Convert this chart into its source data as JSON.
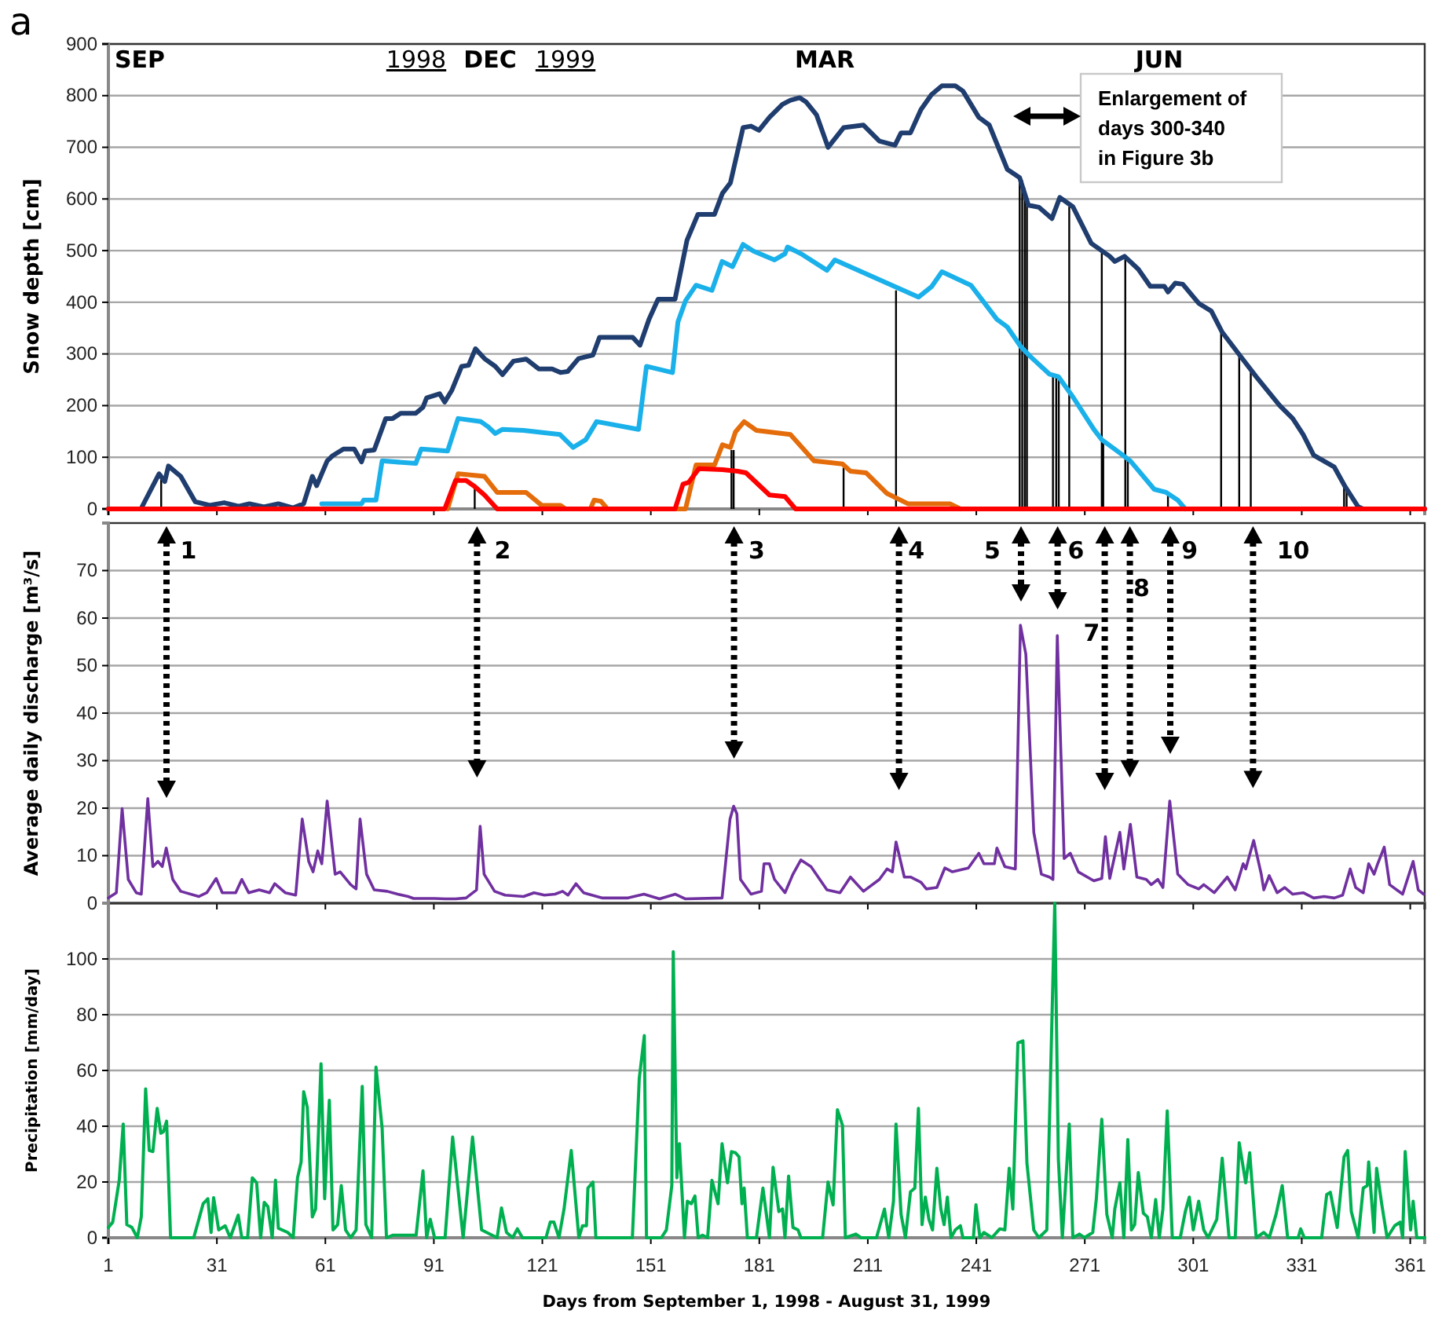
{
  "chart_data": [
    {
      "type": "line",
      "ylabel": "Snow depth [cm]",
      "xlim": [
        1,
        365
      ],
      "xticks": [
        1,
        31,
        61,
        91,
        121,
        151,
        181,
        211,
        241,
        271,
        301,
        331,
        361
      ],
      "ylim": [
        0,
        900
      ],
      "yticks": [
        0,
        100,
        200,
        300,
        400,
        500,
        600,
        700,
        800,
        900
      ],
      "grid": "y",
      "tick_labels": "y",
      "annotations": [
        "a",
        "Enlargement of days 300-340 in Figure 3b",
        "SEP",
        "1998",
        "DEC",
        "1999",
        "MAR",
        "JUN"
      ],
      "series": [
        {
          "type": "bar",
          "color": "#000000",
          "x": [
            15.6,
            102.3,
            173.3,
            173.9,
            204.3,
            218.8,
            253,
            253.7,
            254.4,
            255,
            262.2,
            263.1,
            263.8,
            266.7,
            275.7,
            276.1,
            282.2,
            282.9,
            294,
            308.7,
            313.7,
            316.9,
            342.7,
            343.4
          ],
          "values": [
            68,
            45,
            114,
            114,
            80,
            423,
            641,
            636,
            621,
            591,
            258,
            258,
            258,
            585,
            499,
            134,
            484,
            98,
            32,
            342,
            298,
            271,
            43,
            43
          ]
        },
        {
          "color": "#1f3d6e",
          "x": [
            1,
            10,
            15,
            16.6,
            17.6,
            21,
            25,
            29,
            33,
            37,
            40,
            44,
            48,
            52,
            55,
            57.4,
            58.6,
            61.5,
            63,
            66,
            69,
            71,
            72,
            74.5,
            77.7,
            79.6,
            81.8,
            86,
            88,
            89,
            92.6,
            94,
            96,
            98.7,
            100.6,
            102.5,
            105,
            108,
            110,
            113,
            116.5,
            120,
            123.7,
            126,
            128,
            131,
            135,
            136.8,
            146,
            148,
            150.5,
            153,
            157.7,
            161,
            164,
            168.6,
            170.8,
            173,
            176.5,
            178.7,
            180.9,
            183.8,
            187.4,
            189.6,
            192.2,
            193.9,
            196.8,
            200,
            204.3,
            209.8,
            214.2,
            218.5,
            220.2,
            222.8,
            225.7,
            228.6,
            231.5,
            235.2,
            237.3,
            241.7,
            244.6,
            249.6,
            253,
            255.4,
            258.3,
            261.9,
            264.1,
            267.7,
            272.8,
            277.9,
            279.3,
            282,
            285.8,
            289.1,
            293,
            294,
            296,
            298.1,
            302.5,
            306,
            309,
            314,
            318.4,
            324.9,
            328.5,
            331.4,
            334.3,
            340,
            343,
            346.6,
            348,
            365
          ],
          "values": [
            0,
            0,
            68,
            53,
            83,
            63,
            14,
            7,
            12,
            5,
            10,
            4,
            10,
            2,
            10,
            63,
            45,
            93,
            103,
            116,
            116,
            91,
            112,
            114,
            175,
            175,
            185,
            185,
            197,
            215,
            223,
            207,
            230,
            276,
            278,
            310,
            291,
            276,
            260,
            286,
            290,
            271,
            271,
            264,
            266,
            291,
            298,
            332,
            332,
            317,
            367,
            406,
            406,
            520,
            570,
            570,
            611,
            631,
            738,
            741,
            733,
            758,
            783,
            791,
            796,
            788,
            763,
            700,
            738,
            743,
            712,
            704,
            728,
            728,
            773,
            802,
            819,
            819,
            809,
            758,
            743,
            657,
            641,
            588,
            584,
            562,
            603,
            585,
            514,
            489,
            479,
            489,
            464,
            431,
            431,
            420,
            437,
            435,
            398,
            383,
            342,
            296,
            256,
            200,
            175,
            144,
            104,
            81,
            43,
            4,
            0,
            0
          ]
        },
        {
          "color": "#1ab0ea",
          "x": [
            60,
            71,
            71.6,
            75,
            76.7,
            86,
            87.5,
            94.8,
            97.7,
            104,
            106,
            108,
            110,
            115.8,
            125.9,
            129.5,
            133,
            136,
            147.6,
            149.8,
            157,
            158.5,
            160.6,
            163.5,
            167.9,
            170.7,
            173.6,
            176.5,
            179.4,
            185.2,
            188.1,
            188.8,
            192.5,
            199.7,
            201.9,
            225,
            228.6,
            231.5,
            239.5,
            241.7,
            246.7,
            249.6,
            253.2,
            256.1,
            261.2,
            263.7,
            267.7,
            273.5,
            275.7,
            280,
            283.6,
            290.2,
            293.5,
            296.7,
            298.8
          ],
          "values": [
            10,
            10,
            17,
            17,
            93,
            88,
            116,
            112,
            175,
            169,
            159,
            146,
            154,
            152,
            144,
            119,
            134,
            169,
            154,
            276,
            264,
            362,
            403,
            433,
            423,
            479,
            469,
            512,
            499,
            482,
            494,
            507,
            494,
            462,
            482,
            410,
            430,
            459,
            433,
            413,
            367,
            352,
            315,
            294,
            261,
            256,
            217,
            154,
            134,
            112,
            93,
            38,
            32,
            17,
            0
          ]
        },
        {
          "color": "#e46c0a",
          "x": [
            94.8,
            97.7,
            105,
            108.5,
            116.5,
            120.8,
            126,
            127.4,
            134.3,
            135.3,
            137.2,
            139,
            160.6,
            163.5,
            168.6,
            170.8,
            173,
            174.4,
            176.8,
            180.2,
            189.6,
            196.1,
            204,
            206.2,
            210.5,
            216.3,
            222.1,
            233.7,
            236.6
          ],
          "values": [
            0,
            68,
            63,
            32,
            32,
            7,
            7,
            0,
            0,
            17,
            15,
            0,
            0,
            85,
            85,
            124,
            119,
            149,
            169,
            152,
            144,
            93,
            87,
            73,
            70,
            30,
            10,
            10,
            0
          ]
        },
        {
          "color": "#ff0000",
          "x": [
            1,
            94,
            97,
            99.9,
            102,
            105,
            108.5,
            157.7,
            159.9,
            161.4,
            164.3,
            170.8,
            175,
            177.3,
            183.8,
            188.1,
            191,
            365
          ],
          "values": [
            0,
            0,
            55,
            55,
            45,
            27,
            0,
            0,
            48,
            51,
            78,
            76,
            73,
            70,
            27,
            24,
            0,
            0
          ]
        }
      ]
    },
    {
      "type": "line",
      "ylabel": "Average daily discharge [m³/s]",
      "xlim": [
        1,
        365
      ],
      "xticks": [
        1,
        31,
        61,
        91,
        121,
        151,
        181,
        211,
        241,
        271,
        301,
        331,
        361
      ],
      "ylim": [
        0,
        80
      ],
      "yticks": [
        0,
        10,
        20,
        30,
        40,
        50,
        60,
        70
      ],
      "grid": "y",
      "tick_labels": "y",
      "annotations": [
        "1",
        "2",
        "3",
        "4",
        "5",
        "6",
        "7",
        "8",
        "9",
        "10"
      ],
      "series": [
        {
          "color": "#7030a0",
          "x": [
            1,
            3.2,
            4.8,
            6.5,
            8.7,
            10.1,
            11.9,
            13.3,
            14.7,
            15.9,
            17,
            18.8,
            21,
            26,
            28.2,
            30.8,
            32.5,
            36.2,
            37.9,
            39.8,
            42.7,
            45.6,
            47,
            49.9,
            52.8,
            54.6,
            56.4,
            57.6,
            58.9,
            60,
            61.5,
            63.7,
            65.1,
            68,
            69.5,
            70.6,
            72.4,
            74.5,
            78.1,
            81,
            83.9,
            85.4,
            91.2,
            94.1,
            97,
            99.9,
            102.8,
            103.8,
            104.9,
            107.8,
            110.7,
            115.8,
            118.7,
            121.6,
            124.5,
            126.6,
            128.1,
            130.3,
            132.4,
            137.5,
            144.7,
            149.1,
            153.4,
            157.8,
            160.6,
            170.7,
            172.9,
            173.9,
            174.8,
            175.8,
            178.7,
            181.6,
            182.3,
            183.8,
            185.2,
            188.1,
            190.3,
            192.5,
            195.3,
            199.7,
            203.3,
            206.2,
            209.8,
            214.2,
            216.3,
            217.8,
            218.8,
            221.1,
            222.8,
            225.7,
            227.2,
            230.1,
            232.3,
            234.4,
            238.8,
            241.7,
            243.1,
            246,
            246.7,
            248.9,
            251.8,
            253.2,
            254.7,
            256.9,
            259,
            261.2,
            262.2,
            263.4,
            265.3,
            267,
            269.2,
            273.5,
            275.7,
            276.7,
            277.9,
            280.7,
            281.8,
            283.6,
            285.4,
            288,
            289.4,
            291.2,
            292.6,
            294.5,
            296.7,
            299.6,
            302.5,
            303.9,
            306.8,
            310.4,
            312.6,
            314.8,
            315.5,
            317.7,
            319.8,
            320.5,
            322,
            324.2,
            326.3,
            328.5,
            331.4,
            334.3,
            337.2,
            340,
            342.3,
            344.4,
            345.9,
            348,
            349.5,
            351,
            352,
            353.8,
            355.3,
            358.9,
            361.8,
            363.2,
            364.7
          ],
          "values": [
            1.1,
            2.2,
            19.9,
            5,
            2.2,
            1.9,
            22,
            7.7,
            8.8,
            7.7,
            11.6,
            5,
            2.5,
            1.4,
            2.2,
            5.2,
            2.2,
            2.2,
            5,
            2.2,
            2.8,
            2.2,
            4.1,
            2.2,
            1.7,
            17.7,
            8.8,
            6.6,
            11,
            8.3,
            21.5,
            6.1,
            6.6,
            3.9,
            3,
            17.7,
            6.1,
            2.8,
            2.5,
            1.9,
            1.4,
            1,
            1,
            0.9,
            0.9,
            1.1,
            2.8,
            16.2,
            6.1,
            2.5,
            1.7,
            1.4,
            2.2,
            1.7,
            1.9,
            2.5,
            1.7,
            4.1,
            2.2,
            1.1,
            1.1,
            1.9,
            0.9,
            1.9,
            0.9,
            1.1,
            17.7,
            20.4,
            18.8,
            5,
            1.9,
            2.5,
            8.3,
            8.3,
            5,
            2.2,
            6.1,
            9.1,
            7.7,
            2.8,
            2.2,
            5.5,
            2.5,
            5,
            7.2,
            6.6,
            12.9,
            5.5,
            5.5,
            4.4,
            3,
            3.3,
            7.4,
            6.6,
            7.4,
            10.5,
            8.3,
            8.3,
            11.6,
            7.7,
            7.2,
            58.5,
            52.4,
            14.9,
            6.1,
            5.5,
            5,
            56.3,
            9.4,
            10.5,
            6.6,
            4.7,
            5.2,
            14,
            5.2,
            14.9,
            7.2,
            16.6,
            5.5,
            5,
            3.9,
            5,
            3.3,
            21.5,
            6.1,
            3.9,
            3,
            3.9,
            2.2,
            5.5,
            2.8,
            8.3,
            7.2,
            13.2,
            6.1,
            2.8,
            5.8,
            2.2,
            3.3,
            1.9,
            2.2,
            1.1,
            1.4,
            1.1,
            1.7,
            7.2,
            3.3,
            2.2,
            8.3,
            6.1,
            8.3,
            11.8,
            3.9,
            1.9,
            8.8,
            2.8,
            1.9
          ]
        }
      ]
    },
    {
      "type": "line",
      "ylabel": "Precipitation [mm/day]",
      "xlabel": "Days from September 1, 1998 - August 31, 1999",
      "xlim": [
        1,
        365
      ],
      "xticks": [
        1,
        31,
        61,
        91,
        121,
        151,
        181,
        211,
        241,
        271,
        301,
        331,
        361
      ],
      "ylim": [
        0,
        120
      ],
      "yticks": [
        0,
        20,
        40,
        60,
        80,
        100
      ],
      "grid": "y",
      "series": [
        {
          "color": "#00b050",
          "x": [
            1,
            2.2,
            4,
            5.1,
            6.1,
            7.5,
            9,
            10.1,
            11.3,
            12.3,
            13.3,
            14.5,
            15.5,
            16.2,
            17.1,
            18.2,
            24.6,
            27.2,
            28.5,
            29.4,
            30.1,
            31.5,
            33.3,
            34.7,
            36.9,
            37.9,
            39.5,
            40.8,
            42,
            43.1,
            44.1,
            45.1,
            46.3,
            47.2,
            48,
            50.6,
            52.1,
            53.3,
            54.3,
            55,
            56,
            57.4,
            58.3,
            59.8,
            60.8,
            62.1,
            63.1,
            64.4,
            65.4,
            66.6,
            68,
            69.5,
            71.2,
            72.2,
            73.8,
            75,
            76.7,
            77.9,
            79.6,
            86.1,
            88,
            89,
            90,
            91.2,
            94.1,
            96.2,
            99.1,
            101.7,
            104.2,
            108.5,
            109.7,
            111.1,
            112.8,
            114.1,
            115.5,
            122,
            123.2,
            124.2,
            125.6,
            127,
            129,
            131.1,
            132.1,
            133.2,
            133.6,
            135,
            135.8,
            145.9,
            147.8,
            149.2,
            149.8,
            153.9,
            155.3,
            156.8,
            157.2,
            158.2,
            158.9,
            160.3,
            161.1,
            162.2,
            163.2,
            164.1,
            165.3,
            166.7,
            167.9,
            169.6,
            170.7,
            172.2,
            173.3,
            174.4,
            175.4,
            176.2,
            176.8,
            177.7,
            180.2,
            182,
            183.8,
            184.8,
            186.4,
            187.4,
            188.1,
            189.1,
            190.3,
            191.7,
            192.5,
            198.5,
            200,
            201.4,
            202.6,
            204,
            204.8,
            207.7,
            209.1,
            213.4,
            215.6,
            216.8,
            218.1,
            218.8,
            220.2,
            221.4,
            222.8,
            224,
            225,
            226,
            226.9,
            227.9,
            228.9,
            230.1,
            231.2,
            232.1,
            233,
            234,
            235.2,
            236.6,
            237.3,
            240.2,
            240.9,
            242,
            243.1,
            245.3,
            247.5,
            248.9,
            250.1,
            251.1,
            252.5,
            253.9,
            255,
            256.9,
            258.3,
            260.5,
            262.7,
            263.7,
            264.8,
            266.7,
            267.7,
            269.5,
            270.9,
            273.2,
            274.2,
            275.7,
            277.1,
            278.6,
            279.3,
            280.7,
            281.8,
            282.9,
            283.9,
            284.8,
            285.8,
            287.2,
            288.3,
            289.4,
            290.6,
            291.6,
            292.6,
            293.8,
            295.2,
            297.4,
            298.8,
            299.9,
            301,
            302.5,
            303.9,
            305.1,
            307.5,
            309,
            310.9,
            312.6,
            313.7,
            315.5,
            316.6,
            318.4,
            320.5,
            322,
            323.9,
            325.6,
            327.1,
            330,
            330.7,
            331.7,
            336.5,
            337.9,
            338.9,
            340.8,
            342.7,
            343.7,
            344.7,
            346.6,
            348,
            349.1,
            349.5,
            351,
            351.7,
            353.1,
            354.6,
            356.7,
            358.2,
            358.9,
            359.6,
            361.1,
            361.8,
            362.8,
            365
          ],
          "values": [
            3.7,
            5.6,
            20.6,
            40.8,
            4.7,
            3.7,
            0,
            7.5,
            53.4,
            31.3,
            30.9,
            46.4,
            37.5,
            38,
            41.8,
            0,
            0,
            12.2,
            14,
            1.9,
            14.4,
            2.8,
            4.3,
            0,
            8.1,
            0,
            0,
            21.5,
            19.7,
            0,
            12.7,
            11.2,
            0,
            20.6,
            3.4,
            1.9,
            0,
            21.5,
            27.2,
            52.4,
            46.8,
            7.5,
            10.3,
            62.4,
            14,
            49.3,
            2.8,
            4.7,
            18.7,
            2.8,
            0,
            2.8,
            54.3,
            4.7,
            0,
            61.2,
            39.3,
            0,
            0.9,
            0.9,
            24,
            0,
            6.6,
            0,
            0,
            36.1,
            0,
            36.1,
            2.8,
            0,
            10.7,
            1.9,
            0,
            3.2,
            0,
            0,
            5.6,
            5.6,
            0,
            10.3,
            31.3,
            0,
            4.3,
            4.3,
            17.8,
            20,
            0,
            0,
            57.1,
            72.5,
            0,
            0,
            2.8,
            18.7,
            102.6,
            21.5,
            33.7,
            0,
            13.1,
            12.2,
            15,
            0,
            0.9,
            0,
            20.6,
            12.2,
            33.7,
            19.7,
            30.9,
            30.5,
            29,
            12.2,
            17.8,
            0,
            0,
            17.8,
            0,
            25.3,
            9.4,
            10.3,
            0,
            22.1,
            3.7,
            2.8,
            0,
            0,
            20,
            11.8,
            45.9,
            40.3,
            0,
            1.3,
            0,
            0,
            10.3,
            0,
            13.1,
            40.8,
            8.4,
            0,
            16.5,
            17.8,
            46.4,
            4.7,
            14.6,
            6.6,
            2.8,
            24.9,
            10.3,
            4.7,
            14.6,
            0,
            2.8,
            4.3,
            0,
            0,
            11.8,
            0,
            1.9,
            0,
            3.2,
            2.8,
            24.9,
            10.3,
            69.9,
            70.6,
            26.8,
            2.8,
            0,
            2.8,
            120,
            28.1,
            0,
            40.8,
            0,
            1.3,
            0,
            1.9,
            14,
            42.5,
            8.4,
            0,
            10.3,
            19.7,
            0,
            35.2,
            2.8,
            4.7,
            23.4,
            8.8,
            7.5,
            0,
            13.7,
            0,
            10.3,
            45.5,
            0,
            0,
            9.4,
            14.6,
            2.8,
            13.1,
            2.8,
            0,
            6.6,
            28.5,
            0,
            0,
            34.1,
            19.7,
            30.5,
            0,
            1.9,
            0,
            8.4,
            18.7,
            0,
            0,
            3.2,
            0,
            0,
            15.5,
            16.3,
            3.7,
            29,
            31.3,
            9.4,
            0,
            17.8,
            18.7,
            27.2,
            1.9,
            24.9,
            12.2,
            0,
            4.3,
            5.6,
            0,
            30.9,
            2.8,
            13.1,
            0,
            0
          ]
        }
      ]
    }
  ]
}
